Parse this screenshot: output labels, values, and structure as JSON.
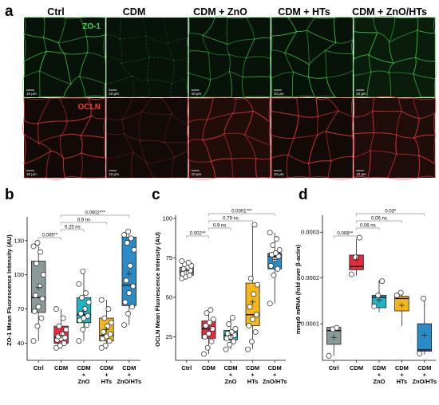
{
  "panel_a": {
    "letter": "a",
    "columns": [
      "Ctrl",
      "CDM",
      "CDM + ZnO",
      "CDM + HTs",
      "CDM + ZnO/HTs"
    ],
    "rows": [
      {
        "stain": "ZO-1",
        "color": "#3fd84a"
      },
      {
        "stain": "OCLN",
        "color": "#ff3a3a"
      }
    ],
    "scale_bar": "10 μm"
  },
  "chart_data": [
    {
      "panel": "b",
      "type": "box",
      "ylabel": "ZO-1 Mean Fluorescence Intensity (AU)",
      "ylim": [
        25,
        148
      ],
      "yticks": [
        "40",
        "70",
        "100",
        "130"
      ],
      "categories": [
        [
          "Ctrl"
        ],
        [
          "CDM"
        ],
        [
          "CDM",
          "+",
          "ZnO"
        ],
        [
          "CDM",
          "+",
          "HTs"
        ],
        [
          "CDM",
          "+",
          "ZnO/HTs"
        ]
      ],
      "colors": [
        "#8a9a98",
        "#e8283c",
        "#22b3c2",
        "#f4b619",
        "#2a8bc6"
      ],
      "series": [
        {
          "q1": 67,
          "median": 80,
          "q3": 112,
          "whisker_low": 42,
          "whisker_high": 128,
          "mean": 89,
          "points": [
            42,
            55,
            62,
            68,
            72,
            79,
            82,
            90,
            100,
            110,
            120,
            125,
            128
          ]
        },
        {
          "q1": 40,
          "median": 45,
          "q3": 55,
          "whisker_low": 35,
          "whisker_high": 70,
          "mean": 47,
          "points": [
            36,
            38,
            40,
            43,
            44,
            45,
            46,
            48,
            52,
            55,
            62,
            70
          ]
        },
        {
          "q1": 58,
          "median": 65,
          "q3": 80,
          "whisker_low": 42,
          "whisker_high": 103,
          "mean": 68,
          "points": [
            42,
            52,
            56,
            60,
            62,
            64,
            66,
            70,
            76,
            80,
            84,
            92,
            103
          ]
        },
        {
          "q1": 42,
          "median": 47,
          "q3": 62,
          "whisker_low": 35,
          "whisker_high": 78,
          "mean": 52,
          "points": [
            36,
            38,
            42,
            44,
            46,
            48,
            50,
            55,
            58,
            62,
            70,
            78
          ]
        },
        {
          "q1": 73,
          "median": 91,
          "q3": 133,
          "whisker_low": 56,
          "whisker_high": 138,
          "mean": 101,
          "points": [
            56,
            66,
            72,
            76,
            84,
            90,
            95,
            108,
            122,
            128,
            132,
            135,
            138
          ]
        }
      ],
      "comparisons": [
        {
          "from": 0,
          "to": 1,
          "label": "0.005**"
        },
        {
          "from": 1,
          "to": 2,
          "label": "0.25 ns"
        },
        {
          "from": 1,
          "to": 3,
          "label": "0.9 ns"
        },
        {
          "from": 1,
          "to": 4,
          "label": "0.0002***"
        }
      ]
    },
    {
      "panel": "c",
      "type": "box",
      "ylabel": "OCLN Mean Fluorescence Intensity (AU)",
      "ylim": [
        10,
        100
      ],
      "yticks": [
        "25",
        "50",
        "75",
        "100"
      ],
      "categories": [
        [
          "Ctrl"
        ],
        [
          "CDM"
        ],
        [
          "CDM",
          "+",
          "ZnO"
        ],
        [
          "CDM",
          "+",
          "HTs"
        ],
        [
          "CDM",
          "+",
          "ZnO/HTs"
        ]
      ],
      "colors": [
        "#8a9a98",
        "#e8283c",
        "#22b3c2",
        "#f4b619",
        "#2a8bc6"
      ],
      "series": [
        {
          "q1": 64,
          "median": 66,
          "q3": 69,
          "whisker_low": 62,
          "whisker_high": 73,
          "mean": 67,
          "points": [
            62,
            63,
            64,
            65,
            66,
            67,
            68,
            69,
            70,
            71,
            72,
            73
          ]
        },
        {
          "q1": 24,
          "median": 30,
          "q3": 35,
          "whisker_low": 14,
          "whisker_high": 42,
          "mean": 30,
          "points": [
            14,
            18,
            22,
            25,
            27,
            30,
            32,
            34,
            36,
            40,
            42
          ]
        },
        {
          "q1": 23,
          "median": 26,
          "q3": 29,
          "whisker_low": 17,
          "whisker_high": 37,
          "mean": 26,
          "points": [
            17,
            20,
            22,
            24,
            25,
            26,
            27,
            28,
            30,
            33,
            37
          ]
        },
        {
          "q1": 32,
          "median": 39,
          "q3": 59,
          "whisker_low": 17,
          "whisker_high": 96,
          "mean": 47,
          "points": [
            17,
            22,
            28,
            32,
            36,
            39,
            44,
            52,
            58,
            62,
            96
          ]
        },
        {
          "q1": 68,
          "median": 76,
          "q3": 78,
          "whisker_low": 46,
          "whisker_high": 91,
          "mean": 74,
          "points": [
            46,
            64,
            68,
            70,
            74,
            76,
            77,
            78,
            80,
            83,
            87,
            91
          ]
        }
      ],
      "comparisons": [
        {
          "from": 0,
          "to": 1,
          "label": "0.002**"
        },
        {
          "from": 1,
          "to": 2,
          "label": "0.9 ns"
        },
        {
          "from": 1,
          "to": 3,
          "label": "0.79 ns"
        },
        {
          "from": 1,
          "to": 4,
          "label": "0.0001***"
        }
      ]
    },
    {
      "panel": "d",
      "type": "box",
      "ylabel": "mmp9 mRNA (fold over β-actin)",
      "ylim": [
        2e-05,
        0.00033
      ],
      "yticks": [
        "0.0001",
        "0.0002",
        "0.0003"
      ],
      "categories": [
        [
          "Ctrl"
        ],
        [
          "CDM"
        ],
        [
          "CDM",
          "+",
          "ZnO"
        ],
        [
          "CDM",
          "+",
          "HTs"
        ],
        [
          "CDM",
          "+",
          "ZnO/HTs"
        ]
      ],
      "colors": [
        "#8a9a98",
        "#e8283c",
        "#22b3c2",
        "#f4b619",
        "#2a8bc6"
      ],
      "series": [
        {
          "q1": 5.5e-05,
          "median": 8.5e-05,
          "q3": 9.2e-05,
          "whisker_low": 3e-05,
          "whisker_high": 9.3e-05,
          "mean": 7e-05,
          "points": [
            3e-05,
            8.8e-05,
            9.1e-05
          ]
        },
        {
          "q1": 0.000218,
          "median": 0.000225,
          "q3": 0.00025,
          "whisker_low": 0.000205,
          "whisker_high": 0.000285,
          "mean": 0.00024,
          "points": [
            0.000208,
            0.000245,
            0.000288
          ]
        },
        {
          "q1": 0.000135,
          "median": 0.000158,
          "q3": 0.000162,
          "whisker_low": 0.000125,
          "whisker_high": 0.000195,
          "mean": 0.000152,
          "points": [
            0.000138,
            0.000162,
            0.000193
          ]
        },
        {
          "q1": 0.000128,
          "median": 0.000155,
          "q3": 0.00016,
          "whisker_low": 9.5e-05,
          "whisker_high": 0.000168,
          "mean": 0.00014,
          "points": [
            0.000162,
            0.000168
          ]
        },
        {
          "q1": 4e-05,
          "median": 4.3e-05,
          "q3": 0.0001,
          "whisker_low": 3.3e-05,
          "whisker_high": 0.000158,
          "mean": 7.5e-05,
          "points": [
            3.5e-05,
            0.000155
          ]
        }
      ],
      "comparisons": [
        {
          "from": 0,
          "to": 1,
          "label": "0.008**"
        },
        {
          "from": 1,
          "to": 2,
          "label": "0.06 ns"
        },
        {
          "from": 1,
          "to": 3,
          "label": "0.06 ns"
        },
        {
          "from": 1,
          "to": 4,
          "label": "0.03*"
        }
      ]
    }
  ]
}
